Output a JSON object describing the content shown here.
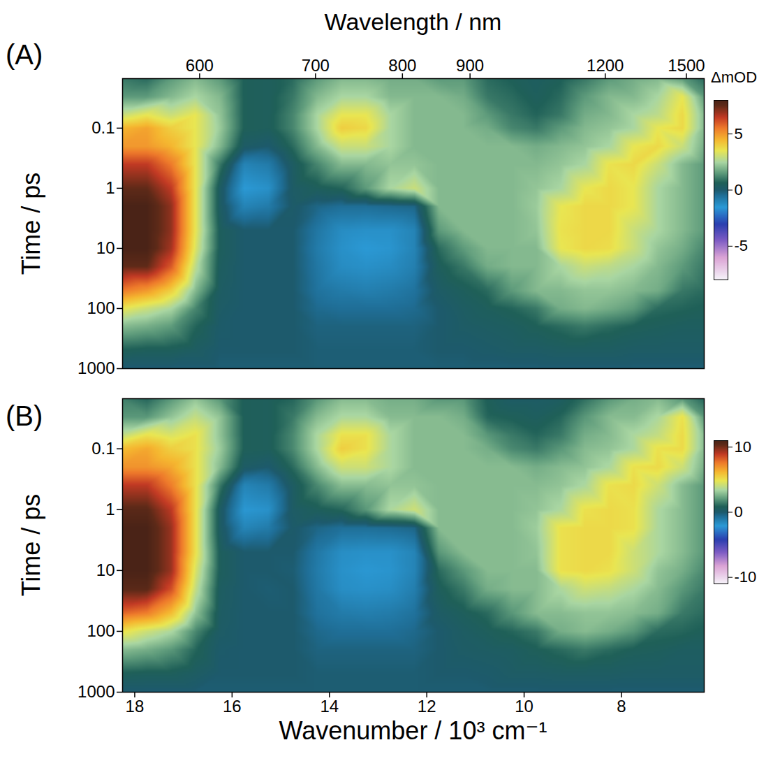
{
  "chart_data": [
    {
      "type": "heatmap",
      "panel_label": "(A)",
      "x2_label": "Wavelength / nm",
      "y_label": "Time / ps",
      "log": "y",
      "xlim": [
        18.25,
        6.3
      ],
      "x2ticks": [
        600,
        700,
        800,
        900,
        1200,
        1500
      ],
      "ylim": [
        0.015,
        1000
      ],
      "yticks": [
        0.1,
        1,
        10,
        100,
        1000
      ],
      "x": [
        18.25,
        17.75,
        17.25,
        16.75,
        16.25,
        15.75,
        15.25,
        14.75,
        14.25,
        13.75,
        13.25,
        12.75,
        12.25,
        11.75,
        11.25,
        10.75,
        10.25,
        9.75,
        9.25,
        8.75,
        8.25,
        7.75,
        7.25,
        6.75,
        6.3
      ],
      "y": [
        0.015,
        0.03,
        0.06,
        0.1,
        0.2,
        0.4,
        1,
        2,
        5,
        10,
        20,
        50,
        100,
        200,
        500,
        1000
      ],
      "values": [
        [
          1,
          0.8,
          1.5,
          2,
          1.5,
          0.6,
          0.5,
          0.8,
          1.5,
          2,
          2,
          1.8,
          1.8,
          1.5,
          1.5,
          0.8,
          0.6,
          0.4,
          0.6,
          1,
          1.5,
          1.8,
          2,
          1.5,
          0.8
        ],
        [
          1.5,
          1.5,
          2,
          2.5,
          2,
          0.6,
          0.5,
          1,
          2,
          2.5,
          2.5,
          2,
          2,
          2,
          1.8,
          1,
          0.8,
          0.5,
          0.8,
          1.5,
          2,
          2,
          2.5,
          3.5,
          1.5
        ],
        [
          3,
          3.5,
          3,
          3.5,
          2.2,
          0.6,
          0.5,
          1.2,
          2.5,
          3.5,
          3.5,
          2.5,
          2,
          2,
          2,
          1.5,
          1,
          0.7,
          1,
          1.8,
          2,
          2.5,
          2.8,
          3.8,
          2
        ],
        [
          4.5,
          4.8,
          4,
          3.5,
          2.3,
          0.6,
          0.5,
          1.2,
          2.5,
          4,
          3.8,
          2.5,
          2,
          2,
          2,
          1.8,
          1.2,
          1,
          1.5,
          2,
          2.2,
          2.5,
          3.5,
          3.8,
          2
        ],
        [
          5,
          5,
          4.5,
          3.5,
          2,
          0.2,
          0,
          0.8,
          2,
          3,
          3,
          2.5,
          2,
          2,
          2,
          2,
          2,
          1.8,
          2,
          2.2,
          2.5,
          3.5,
          3.8,
          3,
          1.8
        ],
        [
          6.5,
          6.5,
          5.5,
          3.5,
          1,
          -1,
          -0.8,
          0.3,
          1.2,
          2,
          2,
          2.2,
          2.2,
          2,
          2,
          2,
          2,
          2,
          2.2,
          2.5,
          3.6,
          3.8,
          3,
          2,
          1.5
        ],
        [
          7.5,
          7.5,
          6.5,
          3.5,
          0.3,
          -1.5,
          -1.3,
          0.2,
          0.5,
          0.7,
          1.5,
          2.5,
          3,
          2,
          2,
          2,
          2,
          2.2,
          2.5,
          3.5,
          3.8,
          3.5,
          2.5,
          2,
          1.5
        ],
        [
          8,
          8,
          7,
          3.5,
          0.3,
          -1,
          -0.8,
          0.1,
          -0.3,
          -0.5,
          -0.5,
          -0.4,
          -0.3,
          2,
          2,
          2,
          2,
          2.3,
          3.5,
          3.8,
          3.8,
          3.5,
          2.5,
          2,
          1.5
        ],
        [
          8,
          8,
          7,
          3.5,
          0.5,
          0,
          0,
          0,
          -0.7,
          -1.2,
          -1.3,
          -1.3,
          -1,
          1.5,
          2,
          2,
          2,
          2.2,
          3.6,
          3.8,
          3.8,
          3,
          2.5,
          2,
          1.5
        ],
        [
          8,
          8,
          6.8,
          3.3,
          0.5,
          0,
          0,
          0,
          -0.8,
          -1.3,
          -1.5,
          -1.4,
          -1,
          0.8,
          1.5,
          2,
          2,
          2,
          3.5,
          3.8,
          3.7,
          3,
          2.2,
          1.8,
          1.2
        ],
        [
          7.5,
          7.5,
          6,
          2.8,
          0.4,
          0,
          0,
          0,
          -0.7,
          -1.2,
          -1.3,
          -1.2,
          -0.9,
          0.5,
          1,
          1.8,
          2,
          2,
          2.5,
          3,
          2.8,
          2.5,
          2,
          1.5,
          1
        ],
        [
          5.5,
          5,
          4,
          2,
          0.3,
          0,
          0,
          0,
          -0.6,
          -0.8,
          -0.9,
          -0.8,
          -0.6,
          0.2,
          0.5,
          0.8,
          1.5,
          2,
          2,
          2.2,
          2.2,
          2,
          1.8,
          1,
          0.8
        ],
        [
          3.5,
          3,
          2.5,
          1.2,
          0.2,
          0,
          0,
          0,
          -0.4,
          -0.5,
          -0.5,
          -0.5,
          -0.4,
          0,
          0.3,
          0.5,
          0.7,
          1,
          1.8,
          2,
          1.8,
          1.5,
          0.8,
          0.7,
          0.6
        ],
        [
          2,
          1.8,
          1.5,
          0.7,
          0.1,
          0,
          0,
          0,
          -0.2,
          -0.2,
          -0.2,
          -0.2,
          -0.2,
          0,
          0.2,
          0.3,
          0.4,
          0.6,
          0.8,
          1,
          0.8,
          0.6,
          0.5,
          0.4,
          0.4
        ],
        [
          0.6,
          0.5,
          0.5,
          0.3,
          0,
          0,
          0,
          0,
          -0.1,
          -0.1,
          -0.1,
          -0.1,
          -0.1,
          0,
          0,
          0.1,
          0.2,
          0.2,
          0.3,
          0.3,
          0.3,
          0.2,
          0.2,
          0.2,
          0.2
        ],
        [
          -0.1,
          -0.1,
          -0.1,
          -0.1,
          -0.1,
          -0.1,
          -0.1,
          -0.1,
          -0.1,
          -0.1,
          -0.1,
          -0.1,
          -0.1,
          -0.1,
          -0.1,
          -0.1,
          -0.1,
          -0.1,
          -0.1,
          -0.1,
          -0.1,
          -0.1,
          -0.1,
          -0.1,
          -0.1
        ]
      ],
      "colorbar": {
        "label": "ΔmOD",
        "lim": [
          -8,
          8
        ],
        "ticks": [
          -5,
          0,
          5
        ]
      }
    },
    {
      "type": "heatmap",
      "panel_label": "(B)",
      "x_label": "Wavenumber / 10³ cm⁻¹",
      "y_label": "Time / ps",
      "log": "y",
      "xlim": [
        18.25,
        6.3
      ],
      "xticks": [
        18,
        16,
        14,
        12,
        10,
        8
      ],
      "ylim": [
        0.015,
        1000
      ],
      "yticks": [
        0.1,
        1,
        10,
        100,
        1000
      ],
      "x": [
        18.25,
        17.75,
        17.25,
        16.75,
        16.25,
        15.75,
        15.25,
        14.75,
        14.25,
        13.75,
        13.25,
        12.75,
        12.25,
        11.75,
        11.25,
        10.75,
        10.25,
        9.75,
        9.25,
        8.75,
        8.25,
        7.75,
        7.25,
        6.75,
        6.3
      ],
      "y": [
        0.015,
        0.03,
        0.06,
        0.1,
        0.2,
        0.4,
        1,
        2,
        5,
        10,
        20,
        50,
        100,
        200,
        500,
        1000
      ],
      "values": [
        [
          1.5,
          1,
          2,
          3,
          2,
          0.8,
          0.7,
          1,
          2,
          2.8,
          2.8,
          2.5,
          2.5,
          2,
          2,
          0.8,
          0.3,
          0.3,
          0.5,
          1.2,
          2,
          2.5,
          2.8,
          2,
          1
        ],
        [
          2,
          2,
          3,
          4,
          3,
          0.8,
          0.7,
          1.4,
          2.8,
          3.5,
          3.5,
          2.8,
          2.8,
          2.8,
          2.5,
          1,
          0.8,
          0.6,
          1,
          2,
          2.8,
          2.8,
          3.5,
          5,
          2
        ],
        [
          4,
          5,
          4.5,
          5,
          3,
          0.8,
          0.7,
          1.7,
          3.5,
          5,
          5,
          3.5,
          2.8,
          2.8,
          2.8,
          2,
          1.4,
          1,
          1.4,
          2.5,
          2.8,
          3.5,
          4,
          5.2,
          2.8
        ],
        [
          6,
          6.5,
          5.5,
          5,
          3.2,
          0.8,
          0.7,
          1.7,
          3.5,
          5.5,
          5,
          3.5,
          2.8,
          2.8,
          2.8,
          2.5,
          1.7,
          1.4,
          2,
          2.8,
          3,
          3.5,
          5,
          5.2,
          2.8
        ],
        [
          7,
          7,
          6.5,
          5,
          2.8,
          0.3,
          0,
          1.1,
          2.8,
          4.2,
          4.2,
          3.5,
          2.8,
          2.8,
          2.8,
          2.8,
          2.8,
          2.5,
          2.8,
          3,
          3.5,
          5,
          5.2,
          4.2,
          2.5
        ],
        [
          9,
          9,
          7.5,
          5,
          1.4,
          -1.4,
          -1.1,
          0.4,
          1.7,
          2.8,
          2.8,
          3,
          3,
          2.8,
          2.8,
          2.8,
          2.8,
          2.8,
          3,
          3.5,
          5,
          5.2,
          4.2,
          2.8,
          2
        ],
        [
          10.5,
          10.5,
          9,
          5,
          0.4,
          -2,
          -1.8,
          0.3,
          0.7,
          1,
          2,
          3.5,
          4.2,
          2.8,
          2.8,
          2.8,
          2.8,
          3,
          3.5,
          5,
          5.2,
          5,
          3.5,
          2.8,
          2
        ],
        [
          11,
          11,
          9.5,
          5,
          0.4,
          -1.4,
          -1.1,
          0.1,
          -0.4,
          -0.7,
          -0.7,
          -0.6,
          -0.4,
          2.8,
          2.8,
          2.8,
          2.8,
          3.2,
          5,
          5.2,
          5.2,
          5,
          3.5,
          2.8,
          2
        ],
        [
          11,
          11,
          9.5,
          5,
          0.7,
          0,
          0,
          0,
          -1,
          -1.7,
          -1.8,
          -1.8,
          -1.4,
          2,
          2.8,
          2.8,
          2.8,
          3,
          5,
          5.2,
          5.2,
          4.2,
          3.5,
          2.8,
          2
        ],
        [
          11,
          11,
          9.5,
          4.5,
          0.7,
          0,
          0,
          -0.1,
          -1.1,
          -1.8,
          -2,
          -1.9,
          -1.4,
          1.1,
          2,
          2.8,
          2.8,
          2.8,
          5,
          5.2,
          5,
          4.2,
          3,
          2.5,
          1.7
        ],
        [
          10.5,
          10.5,
          8.5,
          4,
          0.5,
          0,
          -0.1,
          0,
          -1,
          -1.7,
          -1.8,
          -1.7,
          -1.2,
          0.7,
          1.4,
          2.5,
          2.8,
          2.8,
          3.5,
          4.2,
          4,
          3.5,
          2.8,
          2,
          1.4
        ],
        [
          8,
          7.5,
          6,
          3,
          0.4,
          0,
          0,
          0,
          -0.8,
          -1.1,
          -1.2,
          -1.1,
          -0.8,
          0.3,
          0.7,
          1.1,
          2,
          2.8,
          2.8,
          3,
          3,
          2.8,
          2.5,
          1.4,
          1.1
        ],
        [
          5,
          4.2,
          3.5,
          1.7,
          0.3,
          0,
          0,
          0,
          -0.5,
          -0.7,
          -0.7,
          -0.7,
          -0.5,
          0,
          0.4,
          0.7,
          1,
          1.4,
          2.5,
          2.8,
          2.5,
          2,
          1.1,
          1,
          0.8
        ],
        [
          2.8,
          2.5,
          2,
          1,
          0.1,
          0,
          0,
          0,
          -0.3,
          -0.3,
          -0.3,
          -0.3,
          -0.3,
          0,
          0.3,
          0.4,
          0.5,
          0.8,
          1.1,
          1.4,
          1.1,
          0.8,
          0.7,
          0.5,
          0.5
        ],
        [
          0.8,
          0.7,
          0.7,
          0.4,
          0,
          0,
          0,
          0,
          -0.1,
          -0.1,
          -0.1,
          -0.1,
          -0.1,
          0,
          0,
          0.1,
          0.3,
          0.3,
          0.4,
          0.4,
          0.4,
          0.3,
          0.3,
          0.3,
          0.3
        ],
        [
          -0.1,
          -0.1,
          -0.1,
          -0.1,
          -0.1,
          -0.1,
          -0.1,
          -0.1,
          -0.1,
          -0.1,
          -0.1,
          -0.1,
          -0.1,
          -0.1,
          -0.1,
          -0.1,
          -0.1,
          -0.1,
          -0.1,
          -0.1,
          -0.1,
          -0.1,
          -0.1,
          -0.1,
          -0.1
        ]
      ],
      "colorbar": {
        "lim": [
          -11,
          11
        ],
        "ticks": [
          -10,
          0,
          10
        ]
      }
    }
  ]
}
